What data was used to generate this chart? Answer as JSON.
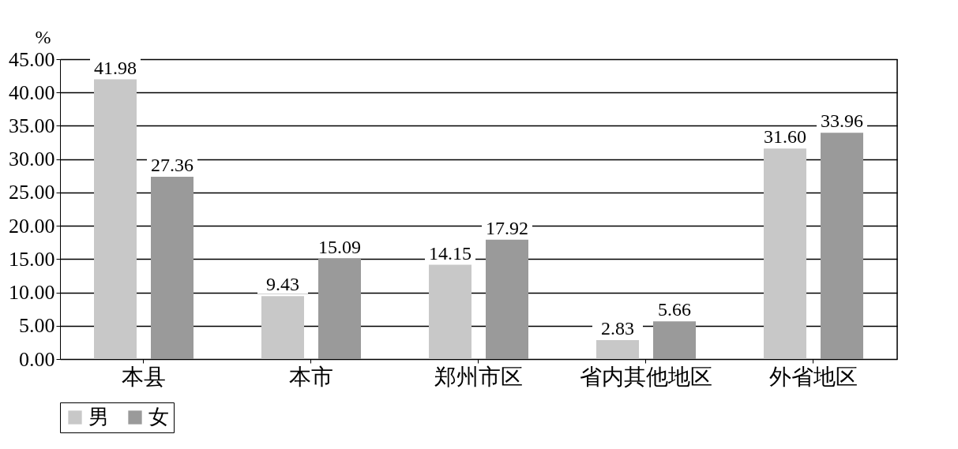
{
  "chart_data": {
    "type": "bar",
    "ylabel": "%",
    "categories": [
      "本县",
      "本市",
      "郑州市区",
      "省内其他地区",
      "外省地区"
    ],
    "series": [
      {
        "name": "男",
        "color": "#c8c8c8",
        "values": [
          41.98,
          9.43,
          14.15,
          2.83,
          31.6
        ],
        "value_labels": [
          "41.98",
          "9.43",
          "14.15",
          "2.83",
          "31.60"
        ]
      },
      {
        "name": "女",
        "color": "#9a9a9a",
        "values": [
          27.36,
          15.09,
          17.92,
          5.66,
          33.96
        ],
        "value_labels": [
          "27.36",
          "15.09",
          "17.92",
          "5.66",
          "33.96"
        ]
      }
    ],
    "ylim": [
      0,
      45
    ],
    "yticks": [
      {
        "value": 0,
        "label": "0.00"
      },
      {
        "value": 5,
        "label": "5.00"
      },
      {
        "value": 10,
        "label": "10.00"
      },
      {
        "value": 15,
        "label": "15.00"
      },
      {
        "value": 20,
        "label": "20.00"
      },
      {
        "value": 25,
        "label": "25.00"
      },
      {
        "value": 30,
        "label": "30.00"
      },
      {
        "value": 35,
        "label": "35.00"
      },
      {
        "value": 40,
        "label": "40.00"
      },
      {
        "value": 45,
        "label": "45.00"
      }
    ],
    "grid": "y",
    "legend": "bottom"
  }
}
